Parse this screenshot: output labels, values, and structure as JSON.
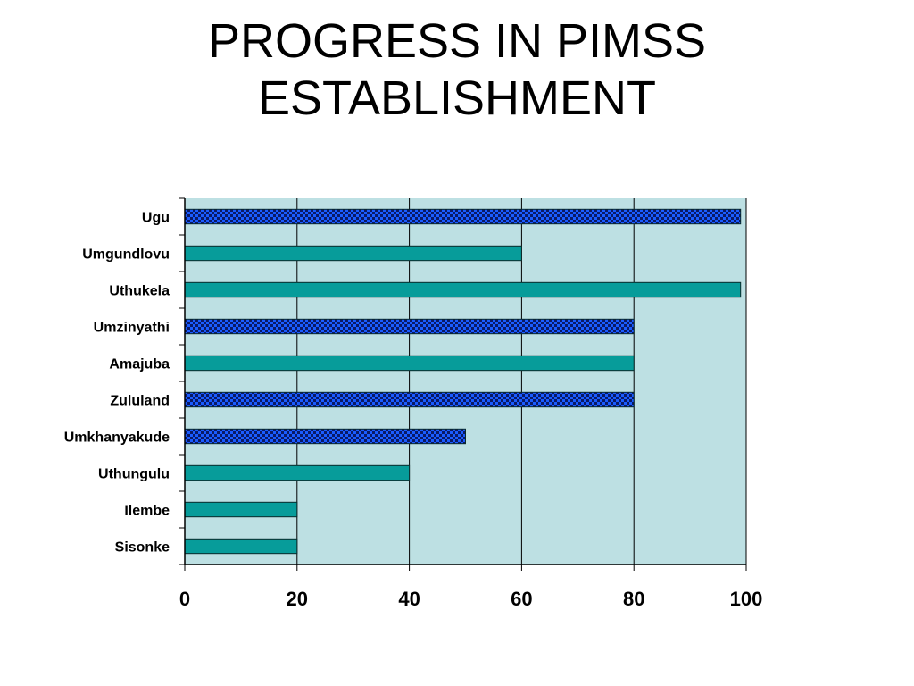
{
  "title": {
    "line1": "PROGRESS IN PIMSS",
    "line2": "ESTABLISHMENT"
  },
  "chart_data": {
    "type": "bar",
    "orientation": "horizontal",
    "categories": [
      "Ugu",
      "Umgundlovu",
      "Uthukela",
      "Umzinyathi",
      "Amajuba",
      "Zululand",
      "Umkhanyakude",
      "Uthungulu",
      "Ilembe",
      "Sisonke"
    ],
    "values": [
      99,
      60,
      99,
      80,
      80,
      80,
      50,
      40,
      20,
      20
    ],
    "fill": [
      "checkered",
      "solid",
      "solid",
      "checkered",
      "solid",
      "checkered",
      "checkered",
      "solid",
      "solid",
      "solid"
    ],
    "xlim": [
      0,
      100
    ],
    "xticks": [
      0,
      20,
      40,
      60,
      80,
      100
    ],
    "grid": true,
    "colors": {
      "plot_bg": "#bde0e3",
      "solid_bar": "#079c9a",
      "checker_a": "#1a5cff",
      "checker_b": "#0a1a66",
      "axis": "#000000"
    }
  }
}
